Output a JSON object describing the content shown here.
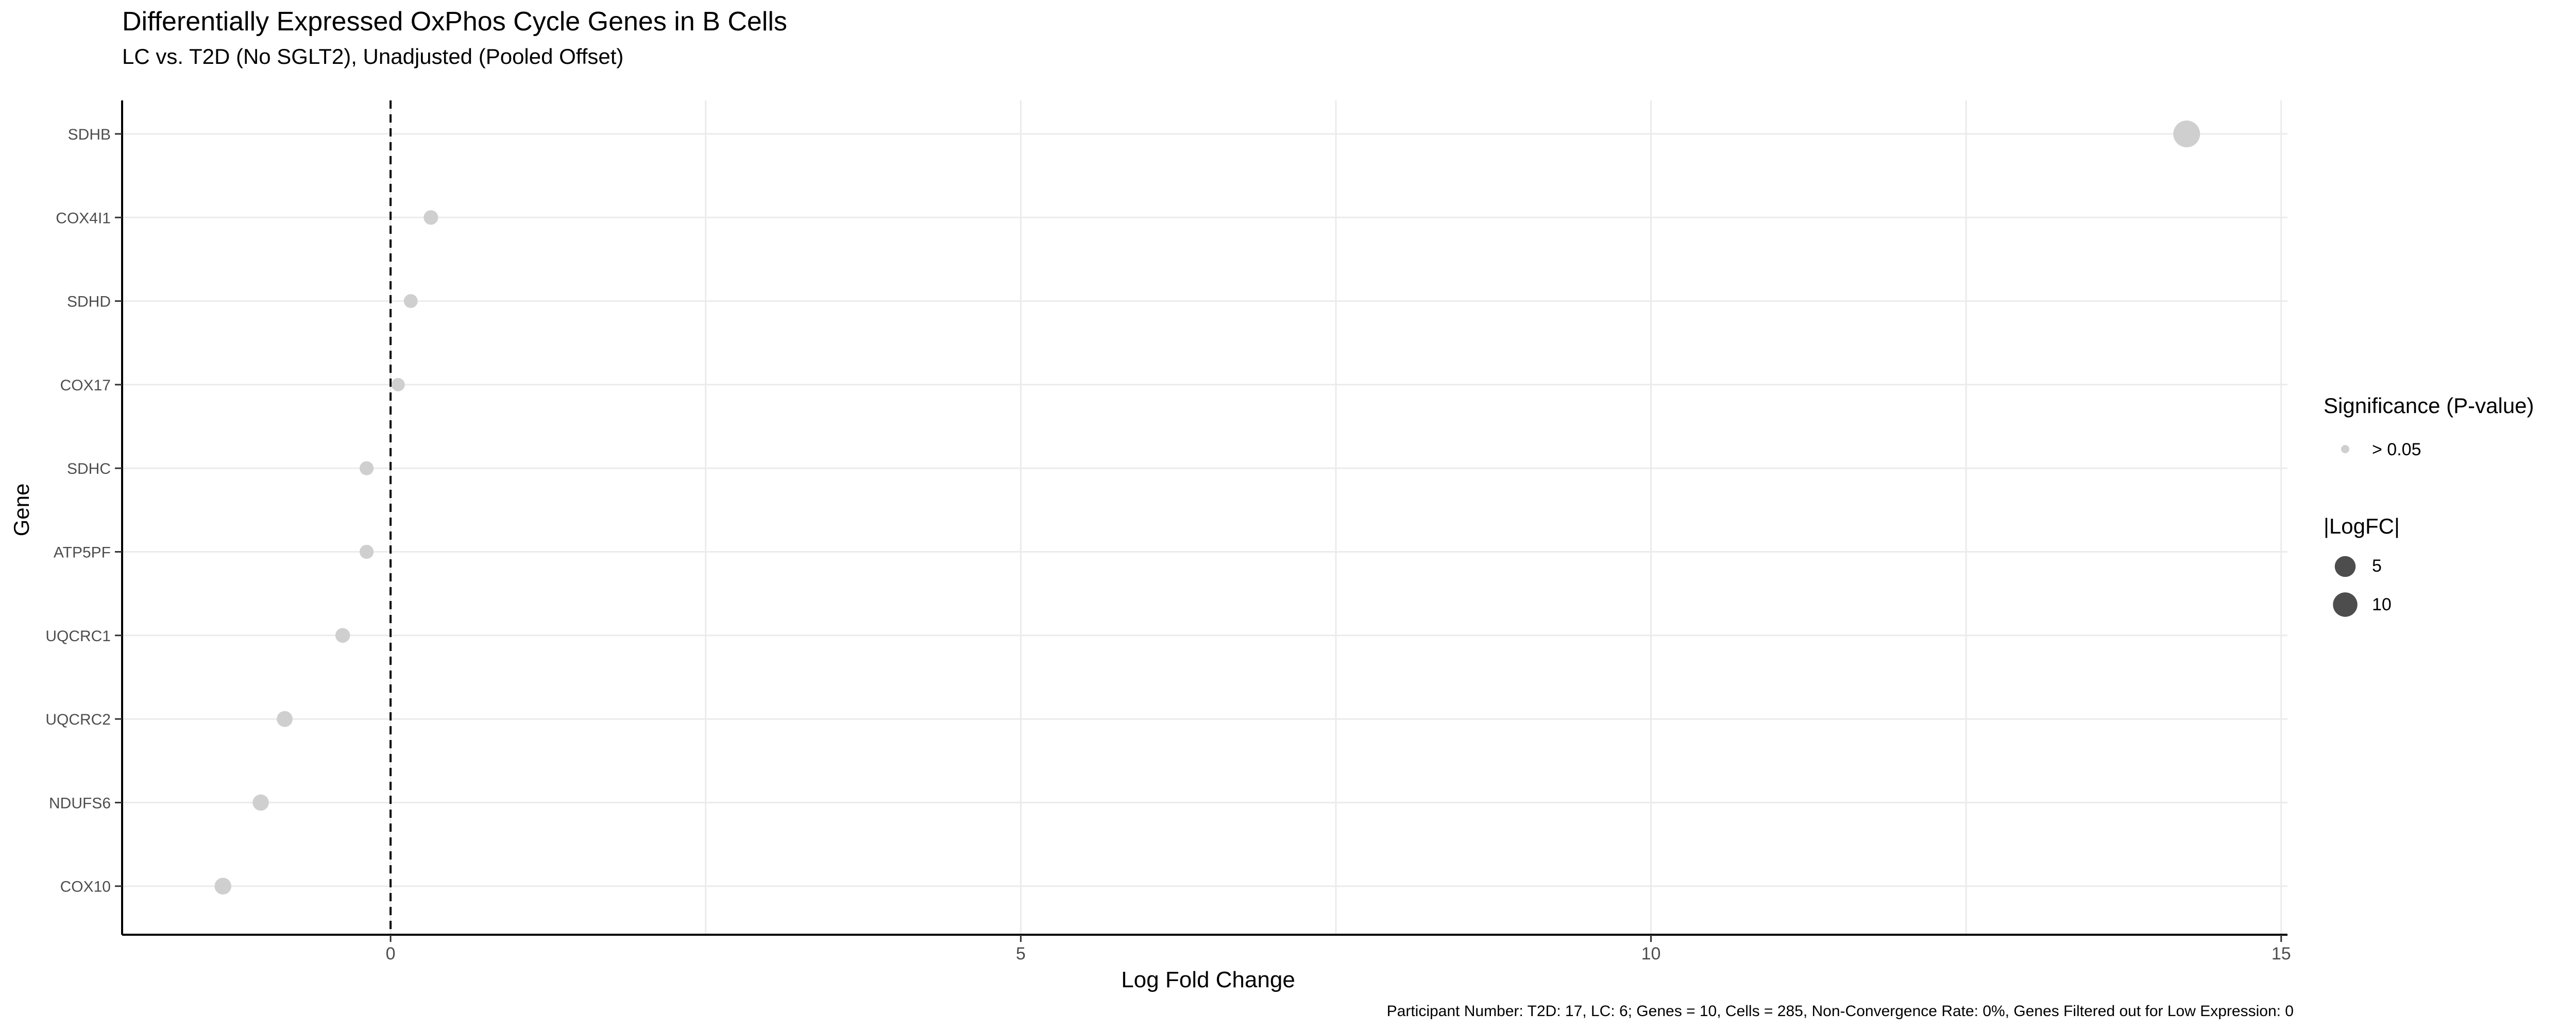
{
  "chart_data": {
    "type": "scatter",
    "title": "Differentially Expressed OxPhos Cycle Genes in B Cells",
    "subtitle": "LC vs. T2D (No SGLT2), Unadjusted (Pooled Offset)",
    "xlabel": "Log Fold Change",
    "ylabel": "Gene",
    "xlim": [
      -2.13,
      15.05
    ],
    "xticks": [
      0,
      5,
      10,
      15
    ],
    "reference_line_x": 0,
    "grid": true,
    "legend_position": "right",
    "genes": [
      "SDHB",
      "COX4I1",
      "SDHD",
      "COX17",
      "SDHC",
      "ATP5PF",
      "UQCRC1",
      "UQCRC2",
      "NDUFS6",
      "COX10"
    ],
    "points": [
      {
        "gene": "SDHB",
        "logFC": 14.25,
        "significance": "> 0.05"
      },
      {
        "gene": "COX4I1",
        "logFC": 0.32,
        "significance": "> 0.05"
      },
      {
        "gene": "SDHD",
        "logFC": 0.16,
        "significance": "> 0.05"
      },
      {
        "gene": "COX17",
        "logFC": 0.06,
        "significance": "> 0.05"
      },
      {
        "gene": "SDHC",
        "logFC": -0.19,
        "significance": "> 0.05"
      },
      {
        "gene": "ATP5PF",
        "logFC": -0.19,
        "significance": "> 0.05"
      },
      {
        "gene": "UQCRC1",
        "logFC": -0.38,
        "significance": "> 0.05"
      },
      {
        "gene": "UQCRC2",
        "logFC": -0.84,
        "significance": "> 0.05"
      },
      {
        "gene": "NDUFS6",
        "logFC": -1.03,
        "significance": "> 0.05"
      },
      {
        "gene": "COX10",
        "logFC": -1.33,
        "significance": "> 0.05"
      }
    ],
    "point_color": "#cfcfcf",
    "legend_significance": {
      "title": "Significance (P-value)",
      "label": "> 0.05",
      "color": "#cfcfcf"
    },
    "legend_size": {
      "title": "|LogFC|",
      "entries": [
        {
          "label": "5",
          "value": 5
        },
        {
          "label": "10",
          "value": 10
        }
      ],
      "color": "#4d4d4d"
    },
    "caption": "Participant Number: T2D: 17, LC: 6; Genes = 10, Cells = 285, Non-Convergence Rate: 0%, Genes Filtered out for Low Expression: 0"
  }
}
